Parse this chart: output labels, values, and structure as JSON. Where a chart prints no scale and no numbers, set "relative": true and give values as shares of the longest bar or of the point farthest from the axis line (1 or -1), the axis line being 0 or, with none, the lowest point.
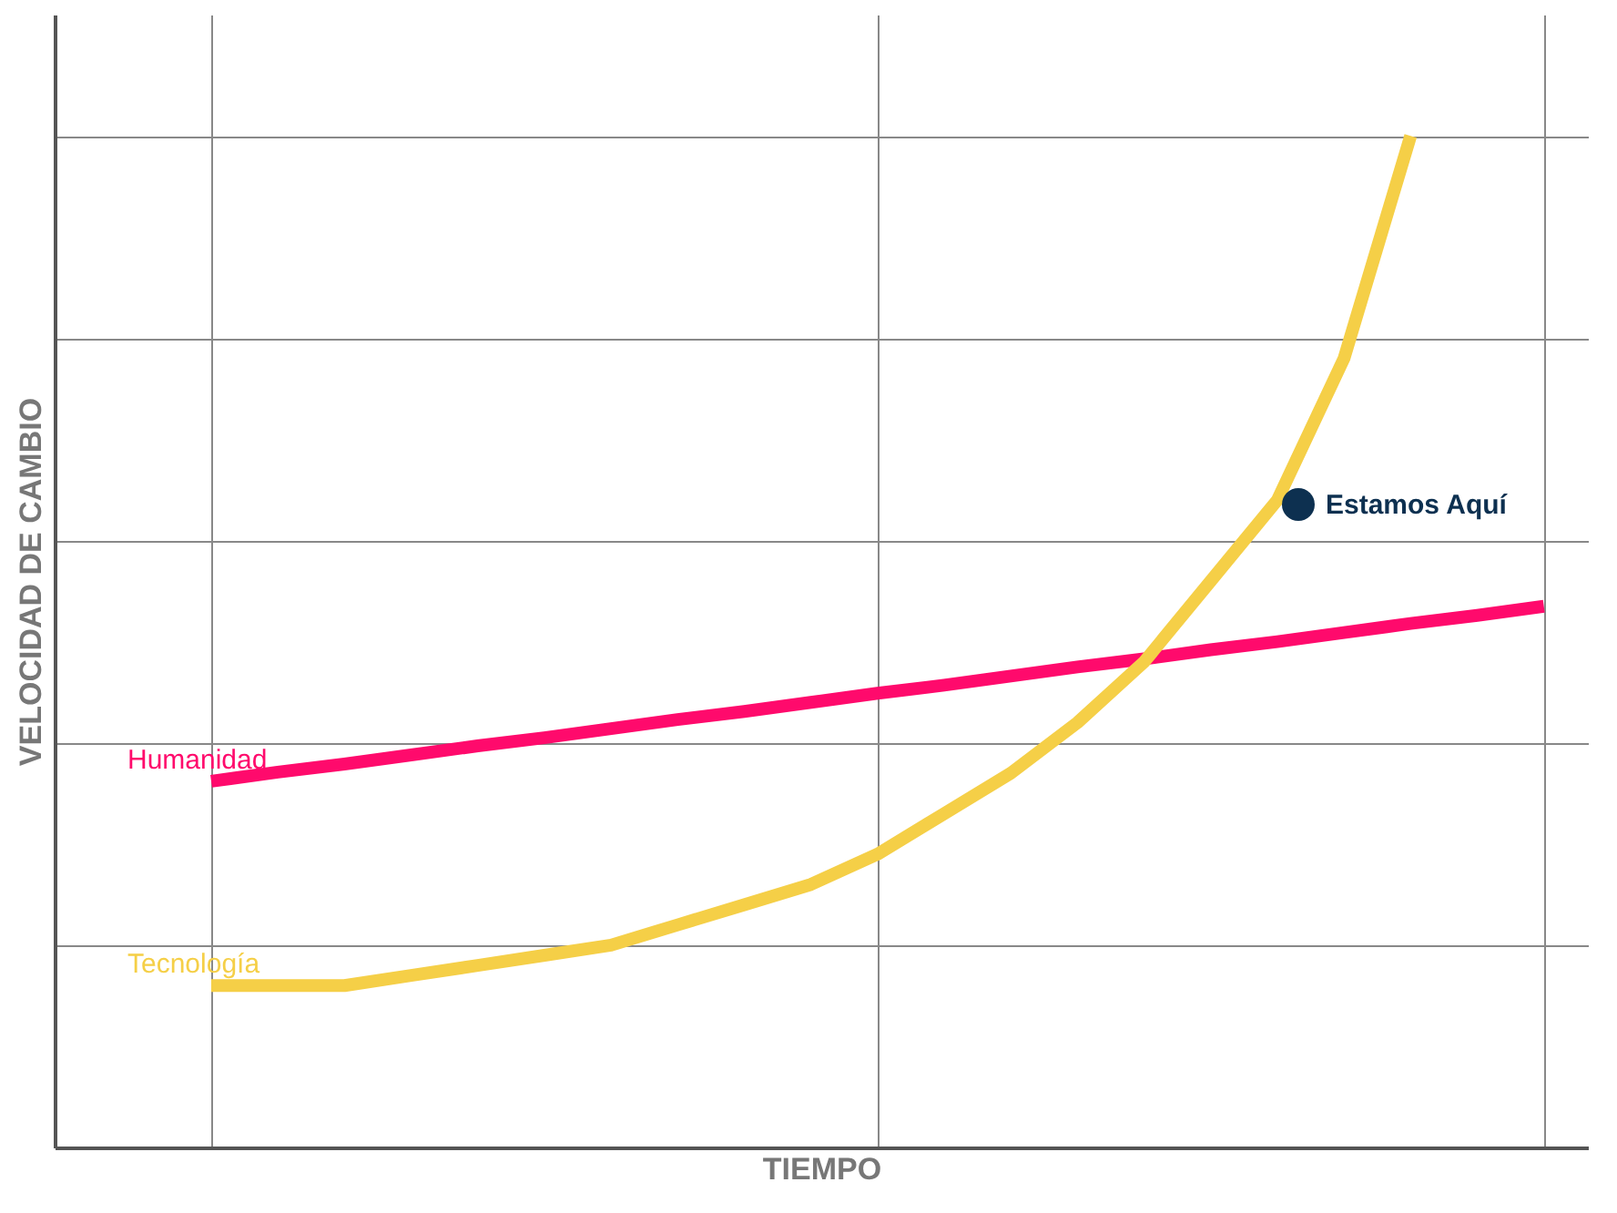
{
  "chart_data": {
    "type": "line",
    "relative": true,
    "xlabel": "TIEMPO",
    "ylabel": "VELOCIDAD DE CAMBIO",
    "grid": true,
    "line_style": "solid",
    "marker": "none",
    "categories": [
      null,
      null,
      null,
      null,
      null,
      null,
      null,
      null,
      null,
      null,
      null,
      null,
      null,
      null,
      null,
      null,
      null,
      null,
      null,
      null,
      null
    ],
    "series": [
      {
        "name": "Humanidad",
        "color": "#ff0a6c",
        "values": [
          0.362,
          0.371,
          0.379,
          0.388,
          0.397,
          0.405,
          0.414,
          0.423,
          0.431,
          0.44,
          0.449,
          0.457,
          0.466,
          0.475,
          0.483,
          0.492,
          0.5,
          0.509,
          0.518,
          0.526,
          0.535
        ]
      },
      {
        "name": "Tecnología",
        "color": "#f5cf47",
        "values": [
          0.16,
          0.16,
          0.16,
          0.17,
          0.18,
          0.19,
          0.2,
          0.22,
          0.24,
          0.26,
          0.29,
          0.33,
          0.37,
          0.42,
          0.48,
          0.56,
          0.64,
          0.78,
          1,
          null,
          null
        ]
      }
    ],
    "annotations": [
      "Estamos Aquí"
    ]
  }
}
